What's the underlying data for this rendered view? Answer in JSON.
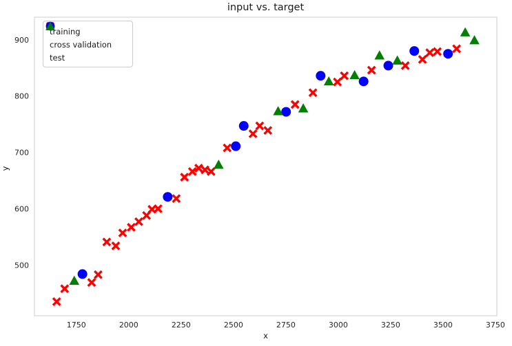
{
  "chart_data": {
    "type": "scatter",
    "title": "input vs. target",
    "xlabel": "x",
    "ylabel": "y",
    "xlim": [
      1550,
      3757
    ],
    "ylim": [
      410,
      940
    ],
    "xticks": [
      1750,
      2000,
      2250,
      2500,
      2750,
      3000,
      3250,
      3500,
      3750
    ],
    "yticks": [
      500,
      600,
      700,
      800,
      900
    ],
    "grid": false,
    "legend_position": "upper left",
    "background": "#ffffff",
    "spine_color": "#cccccc",
    "series": [
      {
        "name": "training",
        "marker": "x",
        "color": "#ff0000",
        "points": [
          [
            1656,
            435
          ],
          [
            1694,
            458
          ],
          [
            1823,
            469
          ],
          [
            1854,
            483
          ],
          [
            1895,
            541
          ],
          [
            1938,
            534
          ],
          [
            1971,
            557
          ],
          [
            2012,
            567
          ],
          [
            2048,
            577
          ],
          [
            2085,
            588
          ],
          [
            2111,
            599
          ],
          [
            2140,
            600
          ],
          [
            2227,
            618
          ],
          [
            2266,
            656
          ],
          [
            2304,
            666
          ],
          [
            2334,
            672
          ],
          [
            2364,
            669
          ],
          [
            2393,
            666
          ],
          [
            2470,
            708
          ],
          [
            2593,
            733
          ],
          [
            2625,
            747
          ],
          [
            2664,
            739
          ],
          [
            2794,
            785
          ],
          [
            2879,
            806
          ],
          [
            2996,
            825
          ],
          [
            3029,
            836
          ],
          [
            3159,
            846
          ],
          [
            3320,
            854
          ],
          [
            3402,
            865
          ],
          [
            3437,
            877
          ],
          [
            3473,
            879
          ],
          [
            3565,
            884
          ]
        ]
      },
      {
        "name": "cross validation",
        "marker": "circle",
        "color": "#0000ff",
        "points": [
          [
            1779,
            484
          ],
          [
            2186,
            621
          ],
          [
            2511,
            711
          ],
          [
            2549,
            747
          ],
          [
            2751,
            772
          ],
          [
            2916,
            836
          ],
          [
            3121,
            826
          ],
          [
            3239,
            854
          ],
          [
            3363,
            880
          ],
          [
            3524,
            875
          ]
        ]
      },
      {
        "name": "test",
        "marker": "triangle",
        "color": "#008000",
        "points": [
          [
            1740,
            472
          ],
          [
            2429,
            678
          ],
          [
            2713,
            773
          ],
          [
            2833,
            778
          ],
          [
            2955,
            826
          ],
          [
            3078,
            837
          ],
          [
            3197,
            872
          ],
          [
            3282,
            863
          ],
          [
            3606,
            913
          ],
          [
            3650,
            899
          ]
        ]
      }
    ]
  }
}
